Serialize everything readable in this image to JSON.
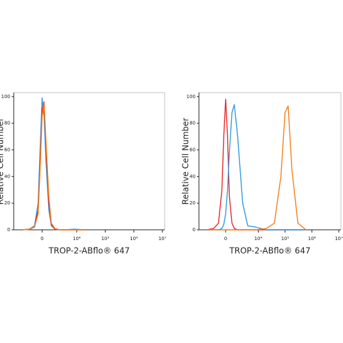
{
  "chart_data": [
    {
      "type": "line",
      "xlabel": "TROP-2-ABflo® 647",
      "ylabel": "Relative Cell Number",
      "xscale": "biexponential",
      "xlim": [
        -6000,
        12000000
      ],
      "ylim": [
        0,
        103
      ],
      "xticks": [
        0,
        {
          "value": 10000,
          "label": "10⁴"
        },
        {
          "value": 100000,
          "label": "10⁵"
        },
        {
          "value": 1000000,
          "label": "10⁶"
        },
        {
          "value": 10000000,
          "label": "10⁷"
        }
      ],
      "yticks": [
        0,
        20,
        40,
        60,
        80,
        100
      ],
      "x": [
        -3000,
        -1500,
        -800,
        -400,
        -200,
        0,
        200,
        400,
        700,
        1000,
        1500,
        2500,
        4000,
        8000,
        20000
      ],
      "series": [
        {
          "color": "#2e9be0",
          "values": [
            0,
            0.5,
            3,
            20,
            60,
            99,
            85,
            50,
            15,
            3,
            0.5,
            0,
            0,
            0.5,
            0
          ]
        },
        {
          "color": "#e8262b",
          "values": [
            0,
            0.5,
            2,
            15,
            50,
            90,
            96,
            60,
            20,
            4,
            0.5,
            0,
            0,
            0,
            0
          ]
        },
        {
          "color": "#f07f1a",
          "values": [
            0,
            0.3,
            2,
            12,
            45,
            85,
            95,
            65,
            25,
            5,
            1,
            0,
            0,
            0,
            0
          ]
        }
      ]
    },
    {
      "type": "line",
      "xlabel": "TROP-2-ABflo® 647",
      "ylabel": "Relative Cell Number",
      "xscale": "biexponential",
      "xlim": [
        -6000,
        12000000
      ],
      "ylim": [
        0,
        103
      ],
      "xticks": [
        0,
        {
          "value": 10000,
          "label": "10⁴"
        },
        {
          "value": 100000,
          "label": "10⁵"
        },
        {
          "value": 1000000,
          "label": "10⁶"
        },
        {
          "value": 10000000,
          "label": "10⁷"
        }
      ],
      "yticks": [
        0,
        20,
        40,
        60,
        80,
        100
      ],
      "x": [
        -3000,
        -1500,
        -800,
        -400,
        -200,
        0,
        200,
        400,
        700,
        1000,
        1500,
        2500,
        4000,
        8000,
        20000,
        40000,
        70000,
        100000,
        130000,
        180000,
        300000,
        600000
      ],
      "series": [
        {
          "color": "#e8262b",
          "values": [
            0,
            1,
            5,
            30,
            70,
            98,
            70,
            25,
            5,
            1,
            0,
            0,
            0,
            0,
            0,
            0,
            0,
            0,
            0,
            0,
            0,
            0
          ]
        },
        {
          "color": "#2e9be0",
          "values": [
            0,
            0,
            0,
            1,
            4,
            12,
            30,
            58,
            88,
            94,
            70,
            20,
            3,
            2,
            0,
            0,
            0,
            0,
            0,
            0,
            0,
            0
          ]
        },
        {
          "color": "#f07f1a",
          "values": [
            0,
            0,
            0,
            0,
            0,
            0,
            0,
            0,
            0,
            0,
            0,
            0,
            0,
            0,
            1,
            5,
            40,
            88,
            93,
            45,
            5,
            0
          ]
        }
      ]
    }
  ]
}
